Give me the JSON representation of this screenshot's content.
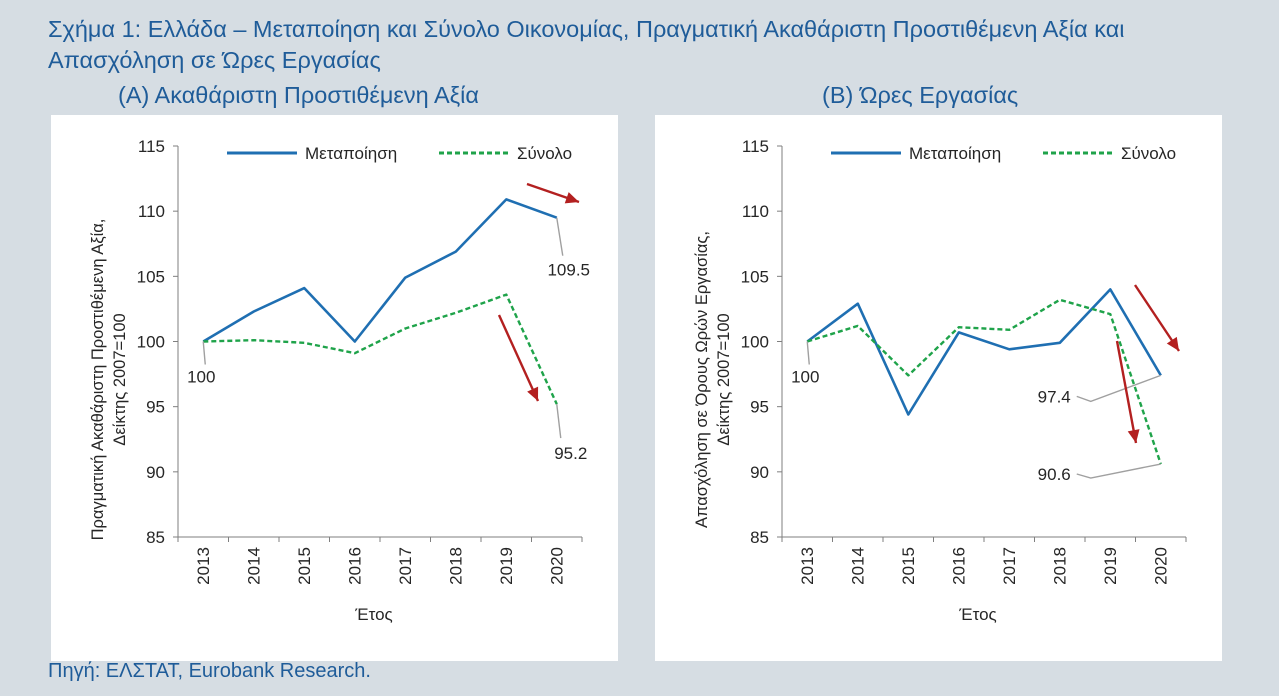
{
  "title": "Σχήμα 1: Ελλάδα – Μεταποίηση και Σύνολο Οικονομίας, Πραγματική Ακαθάριστη Προστιθέμενη Αξία και Απασχόληση σε Ώρες Εργασίας",
  "source": "Πηγή: ΕΛΣΤΑΤ, Eurobank Research.",
  "colors": {
    "manufacturing": "#1f6fb2",
    "total": "#1fa34a",
    "arrow": "#b32020",
    "leader": "#a0a0a0",
    "axis": "#7f7f7f",
    "text": "#262626",
    "title": "#1f5c99"
  },
  "chart_data": [
    {
      "type": "line",
      "panel": "A",
      "title": "(Α) Ακαθάριστη Προστιθέμενη Αξία",
      "ylabel_lines": [
        "Πραγματική Ακαθάριστη Προστιθέμενη Αξία,",
        "Δείκτης 2007=100"
      ],
      "xlabel": "Έτος",
      "categories": [
        "2013",
        "2014",
        "2015",
        "2016",
        "2017",
        "2018",
        "2019",
        "2020"
      ],
      "ylim": [
        85,
        115
      ],
      "yticks": [
        85,
        90,
        95,
        100,
        105,
        110,
        115
      ],
      "legend_position": "top",
      "series": [
        {
          "name": "Μεταποίηση",
          "style": "solid",
          "values": [
            100,
            102.3,
            104.1,
            100.0,
            104.9,
            106.9,
            110.9,
            109.5
          ]
        },
        {
          "name": "Σύνολο",
          "style": "dashed",
          "values": [
            100,
            100.1,
            99.9,
            99.1,
            101.0,
            102.2,
            103.6,
            95.2
          ]
        }
      ],
      "annotations": [
        {
          "text": "100",
          "series": 0,
          "index": 0
        },
        {
          "text": "109.5",
          "series": 0,
          "index": 7
        },
        {
          "text": "95.2",
          "series": 1,
          "index": 7
        }
      ]
    },
    {
      "type": "line",
      "panel": "B",
      "title": "(Β) Ώρες Εργασίας",
      "ylabel_lines": [
        "Απασχόληση σε Όρους Ωρών Εργασίας,",
        "Δείκτης 2007=100"
      ],
      "xlabel": "Έτος",
      "categories": [
        "2013",
        "2014",
        "2015",
        "2016",
        "2017",
        "2018",
        "2019",
        "2020"
      ],
      "ylim": [
        85,
        115
      ],
      "yticks": [
        85,
        90,
        95,
        100,
        105,
        110,
        115
      ],
      "legend_position": "top",
      "series": [
        {
          "name": "Μεταποίηση",
          "style": "solid",
          "values": [
            100,
            102.9,
            94.4,
            100.7,
            99.4,
            99.9,
            104.0,
            97.4
          ]
        },
        {
          "name": "Σύνολο",
          "style": "dashed",
          "values": [
            100,
            101.2,
            97.4,
            101.1,
            100.9,
            103.2,
            102.1,
            90.6
          ]
        }
      ],
      "annotations": [
        {
          "text": "100",
          "series": 0,
          "index": 0
        },
        {
          "text": "97.4",
          "series": 0,
          "index": 7
        },
        {
          "text": "90.6",
          "series": 1,
          "index": 7
        }
      ]
    }
  ]
}
